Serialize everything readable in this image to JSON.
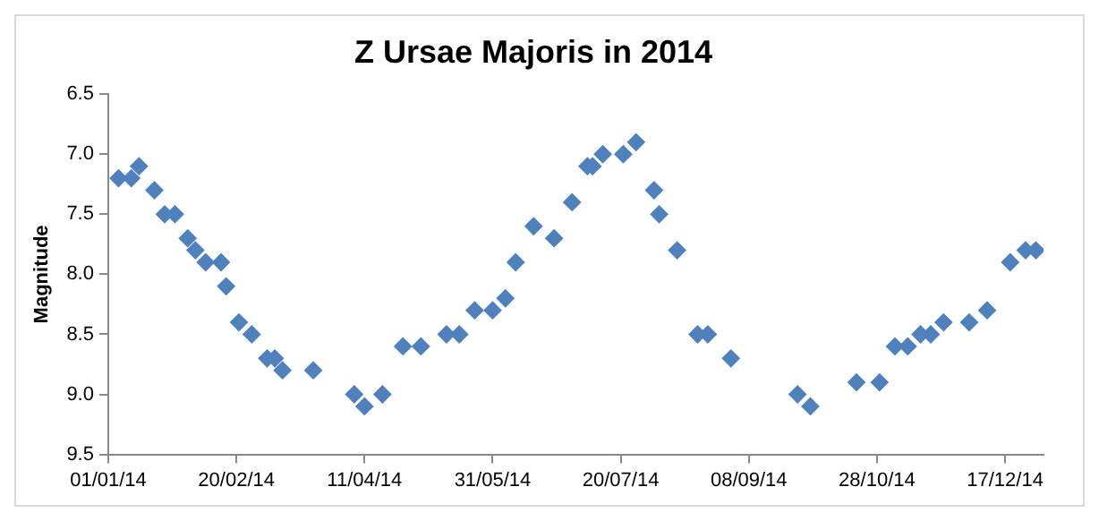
{
  "chart_data": {
    "type": "scatter",
    "title": "Z Ursae Majoris in 2014",
    "ylabel": "Magnitude",
    "x": [
      "2014-01-05",
      "2014-01-10",
      "2014-01-13",
      "2014-01-19",
      "2014-01-23",
      "2014-01-27",
      "2014-02-01",
      "2014-02-04",
      "2014-02-08",
      "2014-02-14",
      "2014-02-16",
      "2014-02-21",
      "2014-02-26",
      "2014-03-04",
      "2014-03-07",
      "2014-03-10",
      "2014-03-22",
      "2014-04-07",
      "2014-04-11",
      "2014-04-18",
      "2014-04-26",
      "2014-05-03",
      "2014-05-13",
      "2014-05-18",
      "2014-05-24",
      "2014-05-31",
      "2014-06-05",
      "2014-06-09",
      "2014-06-16",
      "2014-06-24",
      "2014-07-01",
      "2014-07-07",
      "2014-07-09",
      "2014-07-13",
      "2014-07-21",
      "2014-07-26",
      "2014-08-02",
      "2014-08-04",
      "2014-08-11",
      "2014-08-19",
      "2014-08-23",
      "2014-09-01",
      "2014-09-27",
      "2014-10-02",
      "2014-10-20",
      "2014-10-29",
      "2014-11-04",
      "2014-11-09",
      "2014-11-14",
      "2014-11-18",
      "2014-11-23",
      "2014-12-03",
      "2014-12-10",
      "2014-12-19",
      "2014-12-25",
      "2014-12-29"
    ],
    "series": [
      {
        "color": "#4f81bd",
        "values": [
          7.2,
          7.2,
          7.1,
          7.3,
          7.5,
          7.5,
          7.7,
          7.8,
          7.9,
          7.9,
          8.1,
          8.4,
          8.5,
          8.7,
          8.7,
          8.8,
          8.8,
          9.0,
          9.1,
          9.0,
          8.6,
          8.6,
          8.5,
          8.5,
          8.3,
          8.3,
          8.2,
          7.9,
          7.6,
          7.7,
          7.4,
          7.1,
          7.1,
          7.0,
          7.0,
          6.9,
          7.3,
          7.5,
          7.8,
          8.5,
          8.5,
          8.7,
          9.0,
          9.1,
          8.9,
          8.9,
          8.6,
          8.6,
          8.5,
          8.5,
          8.4,
          8.4,
          8.3,
          7.9,
          7.8,
          7.8
        ]
      }
    ],
    "xlim": [
      "2014-01-01",
      "2015-01-01"
    ],
    "xticks": [
      {
        "value": "2014-01-01",
        "label": "01/01/14"
      },
      {
        "value": "2014-02-20",
        "label": "20/02/14"
      },
      {
        "value": "2014-04-11",
        "label": "11/04/14"
      },
      {
        "value": "2014-05-31",
        "label": "31/05/14"
      },
      {
        "value": "2014-07-20",
        "label": "20/07/14"
      },
      {
        "value": "2014-09-08",
        "label": "08/09/14"
      },
      {
        "value": "2014-10-28",
        "label": "28/10/14"
      },
      {
        "value": "2014-12-17",
        "label": "17/12/14"
      }
    ],
    "ylim": [
      9.5,
      6.5
    ],
    "yticks": [
      6.5,
      {
        "value": 7,
        "label": "7.0"
      },
      7.5,
      {
        "value": 8,
        "label": "8.0"
      },
      8.5,
      {
        "value": 9,
        "label": "9.0"
      },
      9.5
    ],
    "grid": false,
    "legend": false,
    "marker": "diamond"
  }
}
